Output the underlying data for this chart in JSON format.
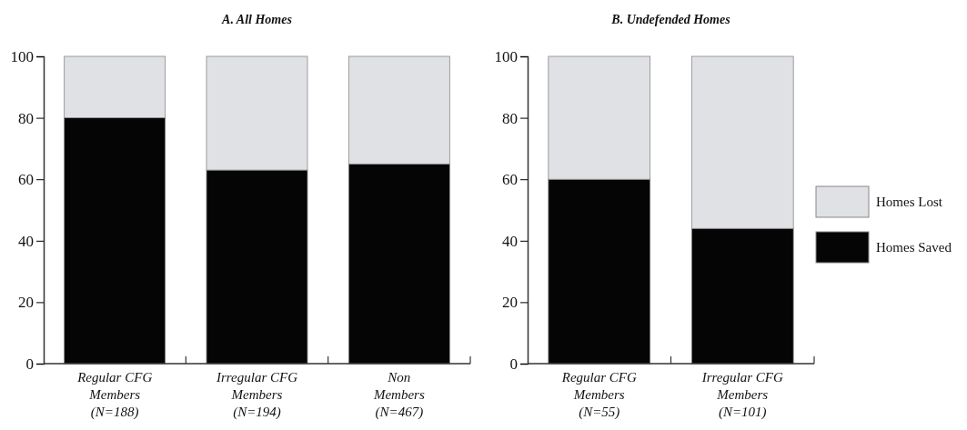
{
  "chart_data": [
    {
      "type": "bar",
      "title": "A. All Homes",
      "stacked": true,
      "categories": [
        "Regular CFG\nMembers\n(N=188)",
        "Irregular CFG\nMembers\n(N=194)",
        "Non\nMembers\n(N=467)"
      ],
      "series": [
        {
          "color": "#050505",
          "values": [
            80,
            63,
            65
          ]
        },
        {
          "color": "#e0e1e4",
          "values": [
            20,
            37,
            35
          ]
        }
      ],
      "ylim": [
        0,
        100
      ],
      "yticks": [
        0,
        20,
        40,
        60,
        80,
        100
      ],
      "grid": false,
      "legend": false
    },
    {
      "type": "bar",
      "title": "B. Undefended Homes",
      "stacked": true,
      "categories": [
        "Regular CFG\nMembers\n(N=55)",
        "Irregular CFG\nMembers\n(N=101)"
      ],
      "series": [
        {
          "name": "Homes Saved",
          "color": "#050505",
          "values": [
            60,
            44
          ]
        },
        {
          "name": "Homes Lost",
          "color": "#e0e1e4",
          "values": [
            40,
            56
          ]
        }
      ],
      "ylim": [
        0,
        100
      ],
      "yticks": [
        0,
        20,
        40,
        60,
        80,
        100
      ],
      "grid": false,
      "legend": "right"
    }
  ]
}
